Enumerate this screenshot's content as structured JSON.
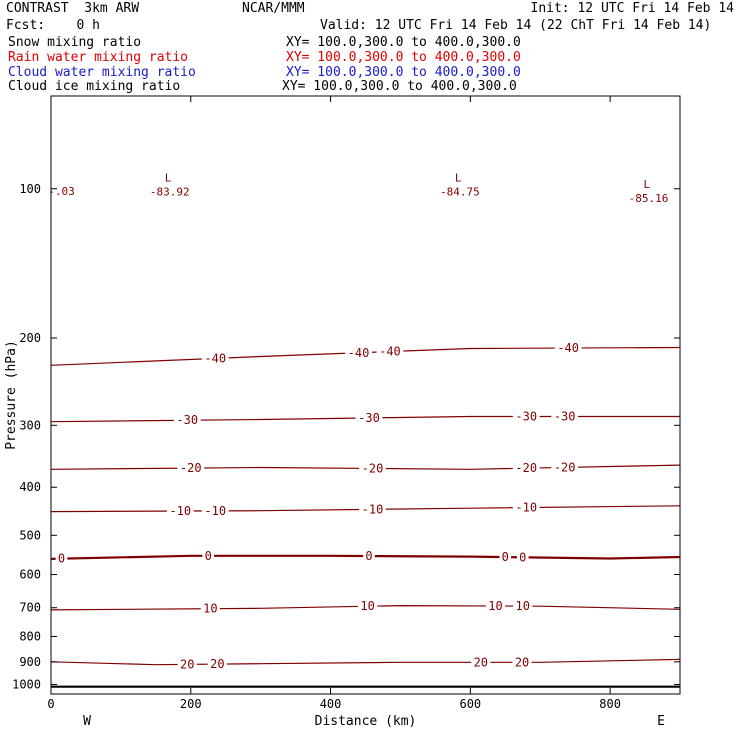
{
  "header": {
    "model": "CONTRAST  3km ARW",
    "center": "NCAR/MMM",
    "init": "Init: 12 UTC Fri 14 Feb 14",
    "fcst": "Fcst:    0 h",
    "valid": "Valid: 12 UTC Fri 14 Feb 14 (22 ChT Fri 14 Feb 14)"
  },
  "fields": [
    {
      "label": "Snow mixing ratio",
      "xy": "XY= 100.0,300.0 to 400.0,300.0",
      "color": "#000000"
    },
    {
      "label": "Rain water mixing ratio",
      "xy": "XY= 100.0,300.0 to 400.0,300.0",
      "color": "#e00000"
    },
    {
      "label": "Cloud water mixing ratio",
      "xy": "XY= 100.0,300.0 to 400.0,300.0",
      "color": "#1a1ad0"
    },
    {
      "label": "Cloud ice mixing ratio",
      "xy": "XY= 100.0,300.0 to 400.0,300.0",
      "color": "#000000"
    }
  ],
  "chart_data": {
    "type": "line",
    "xlabel": "Distance (km)",
    "ylabel": "Pressure (hPa)",
    "x_ticks": [
      0,
      200,
      400,
      600,
      800
    ],
    "y_ticks": [
      100,
      200,
      300,
      400,
      500,
      600,
      700,
      800,
      900,
      1000
    ],
    "xlim": [
      0,
      900
    ],
    "ylim": [
      1045,
      65
    ],
    "y_scale": "log",
    "x_end_labels": {
      "left": "W",
      "right": "E"
    },
    "contour_color": "#800000",
    "surface_pressure": 1010,
    "lows": [
      {
        "x": 170,
        "p": 98,
        "letter": "L",
        "value": "-83.92"
      },
      {
        "x": 585,
        "p": 98,
        "letter": "L",
        "value": "-84.75"
      },
      {
        "x": 855,
        "p": 101,
        "letter": "L",
        "value": "-85.16"
      }
    ],
    "edge_labels": [
      {
        "x": 15,
        "p": 101,
        "text": "-.03"
      }
    ],
    "isotherms": [
      {
        "value": -40,
        "points": [
          [
            0,
            227
          ],
          [
            300,
            218
          ],
          [
            600,
            210
          ],
          [
            900,
            209
          ]
        ],
        "labels": [
          {
            "x": 235,
            "text": "-40"
          },
          {
            "x": 440,
            "text": "-40"
          },
          {
            "x": 485,
            "text": "-40"
          },
          {
            "x": 740,
            "text": "-40"
          }
        ]
      },
      {
        "value": -30,
        "points": [
          [
            0,
            295
          ],
          [
            300,
            292
          ],
          [
            600,
            288
          ],
          [
            900,
            288
          ]
        ],
        "labels": [
          {
            "x": 195,
            "text": "-30"
          },
          {
            "x": 455,
            "text": "-30"
          },
          {
            "x": 680,
            "text": "-30"
          },
          {
            "x": 735,
            "text": "-30"
          }
        ]
      },
      {
        "value": -20,
        "points": [
          [
            0,
            368
          ],
          [
            300,
            365
          ],
          [
            600,
            368
          ],
          [
            900,
            361
          ]
        ],
        "labels": [
          {
            "x": 200,
            "text": "-20"
          },
          {
            "x": 460,
            "text": "-20"
          },
          {
            "x": 680,
            "text": "-20"
          },
          {
            "x": 735,
            "text": "-20"
          }
        ]
      },
      {
        "value": -10,
        "points": [
          [
            0,
            448
          ],
          [
            300,
            446
          ],
          [
            600,
            441
          ],
          [
            900,
            436
          ]
        ],
        "labels": [
          {
            "x": 185,
            "text": "-10"
          },
          {
            "x": 235,
            "text": "-10"
          },
          {
            "x": 460,
            "text": "-10"
          },
          {
            "x": 680,
            "text": "-10"
          }
        ]
      },
      {
        "value": 0,
        "points": [
          [
            0,
            558
          ],
          [
            200,
            550
          ],
          [
            400,
            550
          ],
          [
            600,
            552
          ],
          [
            800,
            557
          ],
          [
            900,
            553
          ]
        ],
        "labels": [
          {
            "x": 15,
            "text": "0"
          },
          {
            "x": 225,
            "text": "0"
          },
          {
            "x": 455,
            "text": "0"
          },
          {
            "x": 650,
            "text": "0"
          },
          {
            "x": 675,
            "text": "0"
          }
        ]
      },
      {
        "value": 10,
        "points": [
          [
            0,
            707
          ],
          [
            300,
            702
          ],
          [
            500,
            693
          ],
          [
            700,
            695
          ],
          [
            900,
            705
          ]
        ],
        "labels": [
          {
            "x": 228,
            "text": "10"
          },
          {
            "x": 453,
            "text": "10"
          },
          {
            "x": 636,
            "text": "10"
          },
          {
            "x": 675,
            "text": "10"
          }
        ]
      },
      {
        "value": 20,
        "points": [
          [
            0,
            900
          ],
          [
            150,
            912
          ],
          [
            300,
            908
          ],
          [
            500,
            902
          ],
          [
            700,
            902
          ],
          [
            900,
            890
          ]
        ],
        "labels": [
          {
            "x": 195,
            "text": "20"
          },
          {
            "x": 238,
            "text": "20"
          },
          {
            "x": 615,
            "text": "20"
          },
          {
            "x": 674,
            "text": "20"
          }
        ]
      }
    ]
  }
}
